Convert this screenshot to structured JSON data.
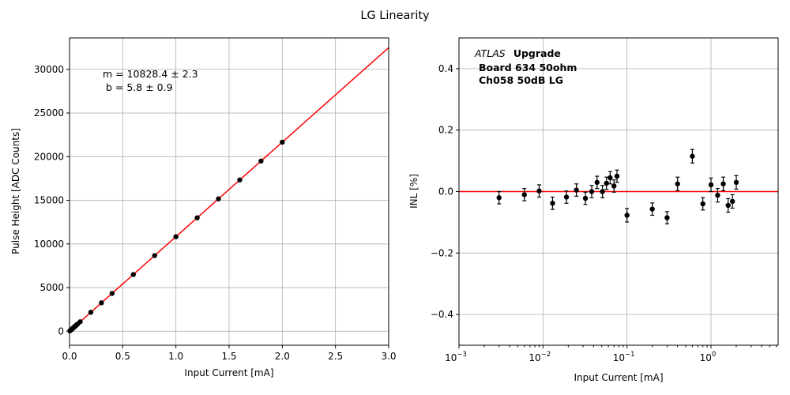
{
  "figure_title": "LG Linearity",
  "colors": {
    "fit_line": "#ff0000",
    "marker": "#000000",
    "grid": "#b0b0b0"
  },
  "chart_data": [
    {
      "type": "scatter",
      "title": "",
      "xlabel": "Input Current [mA]",
      "ylabel": "Pulse Height [ADC Counts]",
      "xlim": [
        0,
        3.0
      ],
      "ylim": [
        -1600,
        33600
      ],
      "xticks": [
        0.0,
        0.5,
        1.0,
        1.5,
        2.0,
        2.5,
        3.0
      ],
      "xtick_labels": [
        "0.0",
        "0.5",
        "1.0",
        "1.5",
        "2.0",
        "2.5",
        "3.0"
      ],
      "yticks": [
        0,
        5000,
        10000,
        15000,
        20000,
        25000,
        30000
      ],
      "ytick_labels": [
        "0",
        "5000",
        "10000",
        "15000",
        "20000",
        "25000",
        "30000"
      ],
      "grid": true,
      "fit": {
        "slope": 10828.4,
        "intercept": 5.8
      },
      "annotation_lines": [
        "m = 10828.4 ± 2.3",
        "b = 5.8 ± 0.9"
      ],
      "x": [
        0.003,
        0.006,
        0.009,
        0.013,
        0.019,
        0.025,
        0.032,
        0.038,
        0.044,
        0.051,
        0.057,
        0.063,
        0.07,
        0.076,
        0.1,
        0.2,
        0.3,
        0.4,
        0.6,
        0.8,
        1.0,
        1.2,
        1.4,
        1.6,
        1.8,
        2.0
      ],
      "y": [
        38,
        71,
        103,
        147,
        212,
        276,
        352,
        417,
        482,
        558,
        623,
        688,
        764,
        829,
        1089,
        2171,
        3254,
        4337,
        6503,
        8668,
        10834,
        12997,
        15165,
        17331,
        19497,
        21661
      ]
    },
    {
      "type": "scatter",
      "title": "",
      "xlabel": "Input Current [mA]",
      "ylabel": "INL [%]",
      "xscale": "log",
      "xlim": [
        0.001,
        6.3
      ],
      "ylim": [
        -0.5,
        0.5
      ],
      "xticks": [
        0.001,
        0.01,
        0.1,
        1
      ],
      "xtick_labels": [
        "10",
        "10",
        "10",
        "10"
      ],
      "xtick_exponents": [
        "−3",
        "−2",
        "−1",
        "0"
      ],
      "yticks": [
        -0.4,
        -0.2,
        0.0,
        0.2,
        0.4
      ],
      "ytick_labels": [
        "−0.4",
        "−0.2",
        "0.0",
        "0.2",
        "0.4"
      ],
      "grid": true,
      "reference_line_y": 0.0,
      "annotation_italic": "ATLAS",
      "annotation_lines": [
        "Upgrade",
        "Board 634 50ohm",
        "Ch058 50dB LG"
      ],
      "x": [
        0.003,
        0.006,
        0.009,
        0.013,
        0.019,
        0.025,
        0.032,
        0.038,
        0.044,
        0.051,
        0.057,
        0.063,
        0.07,
        0.076,
        0.1,
        0.2,
        0.3,
        0.4,
        0.6,
        0.8,
        1.0,
        1.2,
        1.4,
        1.6,
        1.8,
        2.0
      ],
      "y": [
        -0.02,
        -0.01,
        0.002,
        -0.038,
        -0.018,
        0.005,
        -0.022,
        0.0,
        0.03,
        0.0,
        0.027,
        0.045,
        0.018,
        0.05,
        -0.077,
        -0.057,
        -0.085,
        0.025,
        0.115,
        -0.04,
        0.022,
        -0.012,
        0.025,
        -0.045,
        -0.032,
        0.03
      ],
      "yerr": [
        0.02,
        0.02,
        0.02,
        0.02,
        0.02,
        0.02,
        0.02,
        0.02,
        0.02,
        0.02,
        0.02,
        0.02,
        0.02,
        0.02,
        0.022,
        0.02,
        0.02,
        0.022,
        0.022,
        0.02,
        0.022,
        0.022,
        0.022,
        0.022,
        0.022,
        0.022
      ]
    }
  ]
}
